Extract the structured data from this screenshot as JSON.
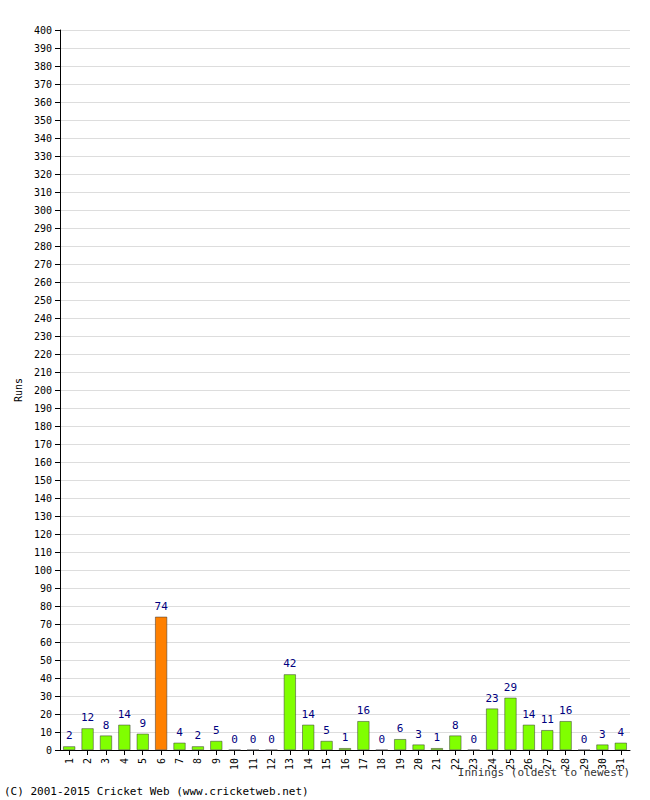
{
  "chart_data": {
    "type": "bar",
    "x_label": "Innings (oldest to newest)",
    "y_label": "Runs",
    "annotations": [
      "(C) 2001-2015 Cricket Web (www.cricketweb.net)"
    ],
    "categories": [
      "1",
      "2",
      "3",
      "4",
      "5",
      "6",
      "7",
      "8",
      "9",
      "10",
      "11",
      "12",
      "13",
      "14",
      "15",
      "16",
      "17",
      "18",
      "19",
      "20",
      "21",
      "22",
      "23",
      "24",
      "25",
      "26",
      "27",
      "28",
      "29",
      "30",
      "31"
    ],
    "values": [
      2,
      12,
      8,
      14,
      9,
      74,
      4,
      2,
      5,
      0,
      0,
      0,
      42,
      14,
      5,
      1,
      16,
      0,
      6,
      3,
      1,
      8,
      0,
      23,
      29,
      14,
      11,
      16,
      0,
      3,
      4
    ],
    "colors": [
      "#80ff00",
      "#80ff00",
      "#80ff00",
      "#80ff00",
      "#80ff00",
      "#ff8000",
      "#80ff00",
      "#80ff00",
      "#80ff00",
      "#80ff00",
      "#80ff00",
      "#80ff00",
      "#80ff00",
      "#80ff00",
      "#80ff00",
      "#80ff00",
      "#80ff00",
      "#80ff00",
      "#80ff00",
      "#80ff00",
      "#80ff00",
      "#80ff00",
      "#80ff00",
      "#80ff00",
      "#80ff00",
      "#80ff00",
      "#80ff00",
      "#80ff00",
      "#80ff00",
      "#80ff00",
      "#80ff00"
    ],
    "ylim": [
      0,
      400
    ],
    "yticks": [
      0,
      10,
      20,
      30,
      40,
      50,
      60,
      70,
      80,
      90,
      100,
      110,
      120,
      130,
      140,
      150,
      160,
      170,
      180,
      190,
      200,
      210,
      220,
      230,
      240,
      250,
      260,
      270,
      280,
      290,
      300,
      310,
      320,
      330,
      340,
      350,
      360,
      370,
      380,
      390,
      400
    ],
    "grid": true,
    "data_labels": true
  }
}
